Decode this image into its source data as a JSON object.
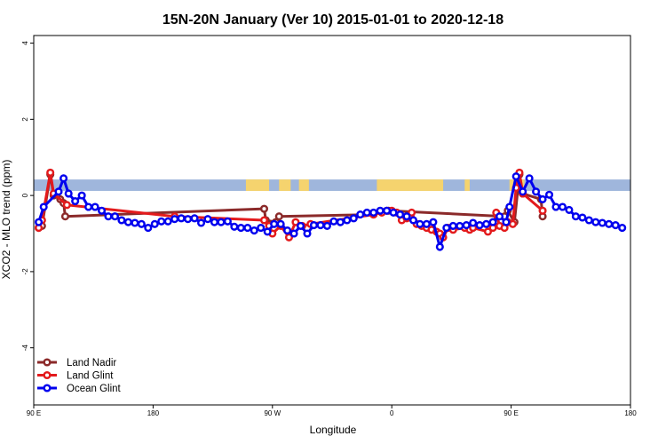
{
  "chart_data": {
    "type": "line",
    "title": "15N-20N January (Ver 10)   2015-01-01 to 2020-12-18",
    "xlabel": "Longitude",
    "ylabel": "XCO2 - MLO trend (ppm)",
    "xlim": [
      90,
      450
    ],
    "ylim": [
      -5.5,
      4.2
    ],
    "x_ticks": [
      {
        "value": 90,
        "label": "90 E"
      },
      {
        "value": 162,
        "label": "180"
      },
      {
        "value": 234,
        "label": "90 W"
      },
      {
        "value": 306,
        "label": "0"
      },
      {
        "value": 378,
        "label": "90 E"
      },
      {
        "value": 450,
        "label": "180"
      }
    ],
    "y_ticks": [
      {
        "value": -4,
        "label": "-4"
      },
      {
        "value": -2,
        "label": "-2"
      },
      {
        "value": 0,
        "label": "0"
      },
      {
        "value": 2,
        "label": "2"
      },
      {
        "value": 4,
        "label": "4"
      }
    ],
    "land_strip": {
      "y_range": [
        0.12,
        0.42
      ],
      "ocean_color": "#9fb6dc",
      "land_color": "#f5d36e",
      "land_segments": [
        [
          218,
          232
        ],
        [
          238,
          245
        ],
        [
          250,
          256
        ],
        [
          297,
          337
        ],
        [
          350,
          353
        ],
        [
          377,
          386
        ]
      ]
    },
    "series": [
      {
        "name": "Land Nadir",
        "color": "#8b2a2a",
        "points": [
          [
            93,
            -0.85
          ],
          [
            95,
            -0.8
          ],
          [
            100,
            0.55
          ],
          [
            102,
            0
          ],
          [
            106,
            -0.1
          ],
          [
            108,
            -0.2
          ],
          [
            109,
            -0.55
          ],
          [
            229,
            -0.35
          ],
          [
            230,
            -0.65
          ],
          [
            236,
            -0.7
          ],
          [
            238,
            -0.55
          ],
          [
            295,
            -0.5
          ],
          [
            304,
            -0.4
          ],
          [
            374,
            -0.55
          ],
          [
            376,
            -0.4
          ],
          [
            380,
            -0.7
          ],
          [
            383,
            0.55
          ],
          [
            385,
            0.05
          ],
          [
            396,
            -0.1
          ],
          [
            397,
            -0.55
          ]
        ]
      },
      {
        "name": "Land Glint",
        "color": "#e31a1c",
        "points": [
          [
            93,
            -0.85
          ],
          [
            95,
            -0.65
          ],
          [
            100,
            0.6
          ],
          [
            102,
            0.05
          ],
          [
            110,
            -0.25
          ],
          [
            175,
            -0.55
          ],
          [
            229,
            -0.65
          ],
          [
            232,
            -0.8
          ],
          [
            234,
            -1.0
          ],
          [
            239,
            -0.8
          ],
          [
            244,
            -1.1
          ],
          [
            248,
            -0.7
          ],
          [
            252,
            -0.8
          ],
          [
            257,
            -0.75
          ],
          [
            295,
            -0.5
          ],
          [
            300,
            -0.45
          ],
          [
            303,
            -0.4
          ],
          [
            306,
            -0.4
          ],
          [
            309,
            -0.45
          ],
          [
            312,
            -0.65
          ],
          [
            315,
            -0.6
          ],
          [
            318,
            -0.45
          ],
          [
            321,
            -0.75
          ],
          [
            324,
            -0.8
          ],
          [
            327,
            -0.85
          ],
          [
            330,
            -0.9
          ],
          [
            333,
            -0.95
          ],
          [
            335,
            -1.0
          ],
          [
            337,
            -1.1
          ],
          [
            340,
            -0.85
          ],
          [
            343,
            -0.9
          ],
          [
            350,
            -0.85
          ],
          [
            353,
            -0.9
          ],
          [
            355,
            -0.85
          ],
          [
            364,
            -0.95
          ],
          [
            367,
            -0.85
          ],
          [
            369,
            -0.45
          ],
          [
            371,
            -0.8
          ],
          [
            374,
            -0.85
          ],
          [
            376,
            -0.7
          ],
          [
            379,
            -0.75
          ],
          [
            381,
            0.2
          ],
          [
            383,
            0.6
          ],
          [
            385,
            0.05
          ],
          [
            397,
            -0.4
          ]
        ]
      },
      {
        "name": "Ocean Glint",
        "color": "#0000ee",
        "points": [
          [
            93,
            -0.7
          ],
          [
            96,
            -0.3
          ],
          [
            105,
            0.1
          ],
          [
            108,
            0.45
          ],
          [
            111,
            0.05
          ],
          [
            115,
            -0.15
          ],
          [
            119,
            0
          ],
          [
            123,
            -0.3
          ],
          [
            127,
            -0.3
          ],
          [
            131,
            -0.4
          ],
          [
            135,
            -0.55
          ],
          [
            139,
            -0.55
          ],
          [
            143,
            -0.65
          ],
          [
            147,
            -0.7
          ],
          [
            151,
            -0.72
          ],
          [
            155,
            -0.75
          ],
          [
            159,
            -0.85
          ],
          [
            163,
            -0.75
          ],
          [
            167,
            -0.68
          ],
          [
            171,
            -0.68
          ],
          [
            175,
            -0.62
          ],
          [
            179,
            -0.6
          ],
          [
            183,
            -0.62
          ],
          [
            187,
            -0.6
          ],
          [
            191,
            -0.72
          ],
          [
            195,
            -0.62
          ],
          [
            199,
            -0.7
          ],
          [
            203,
            -0.7
          ],
          [
            207,
            -0.68
          ],
          [
            211,
            -0.82
          ],
          [
            215,
            -0.85
          ],
          [
            219,
            -0.85
          ],
          [
            223,
            -0.92
          ],
          [
            227,
            -0.85
          ],
          [
            231,
            -0.95
          ],
          [
            235,
            -0.75
          ],
          [
            239,
            -0.75
          ],
          [
            243,
            -0.92
          ],
          [
            247,
            -1.0
          ],
          [
            251,
            -0.8
          ],
          [
            255,
            -1.0
          ],
          [
            259,
            -0.78
          ],
          [
            263,
            -0.78
          ],
          [
            267,
            -0.8
          ],
          [
            271,
            -0.68
          ],
          [
            275,
            -0.7
          ],
          [
            279,
            -0.65
          ],
          [
            283,
            -0.6
          ],
          [
            287,
            -0.5
          ],
          [
            291,
            -0.45
          ],
          [
            295,
            -0.45
          ],
          [
            299,
            -0.4
          ],
          [
            303,
            -0.4
          ],
          [
            307,
            -0.45
          ],
          [
            311,
            -0.5
          ],
          [
            315,
            -0.55
          ],
          [
            319,
            -0.65
          ],
          [
            323,
            -0.75
          ],
          [
            327,
            -0.75
          ],
          [
            331,
            -0.7
          ],
          [
            335,
            -1.35
          ],
          [
            339,
            -0.85
          ],
          [
            343,
            -0.8
          ],
          [
            347,
            -0.8
          ],
          [
            351,
            -0.78
          ],
          [
            355,
            -0.72
          ],
          [
            359,
            -0.78
          ],
          [
            363,
            -0.75
          ],
          [
            367,
            -0.7
          ],
          [
            371,
            -0.55
          ],
          [
            375,
            -0.7
          ],
          [
            377,
            -0.3
          ],
          [
            381,
            0.5
          ],
          [
            385,
            0.1
          ],
          [
            389,
            0.45
          ],
          [
            393,
            0.1
          ],
          [
            397,
            -0.1
          ],
          [
            401,
            0.02
          ],
          [
            405,
            -0.3
          ],
          [
            409,
            -0.3
          ],
          [
            413,
            -0.38
          ],
          [
            417,
            -0.55
          ],
          [
            421,
            -0.58
          ],
          [
            425,
            -0.65
          ],
          [
            429,
            -0.7
          ],
          [
            433,
            -0.72
          ],
          [
            437,
            -0.75
          ],
          [
            441,
            -0.78
          ],
          [
            445,
            -0.85
          ]
        ]
      }
    ],
    "legend": {
      "position": "bottom-left"
    }
  }
}
